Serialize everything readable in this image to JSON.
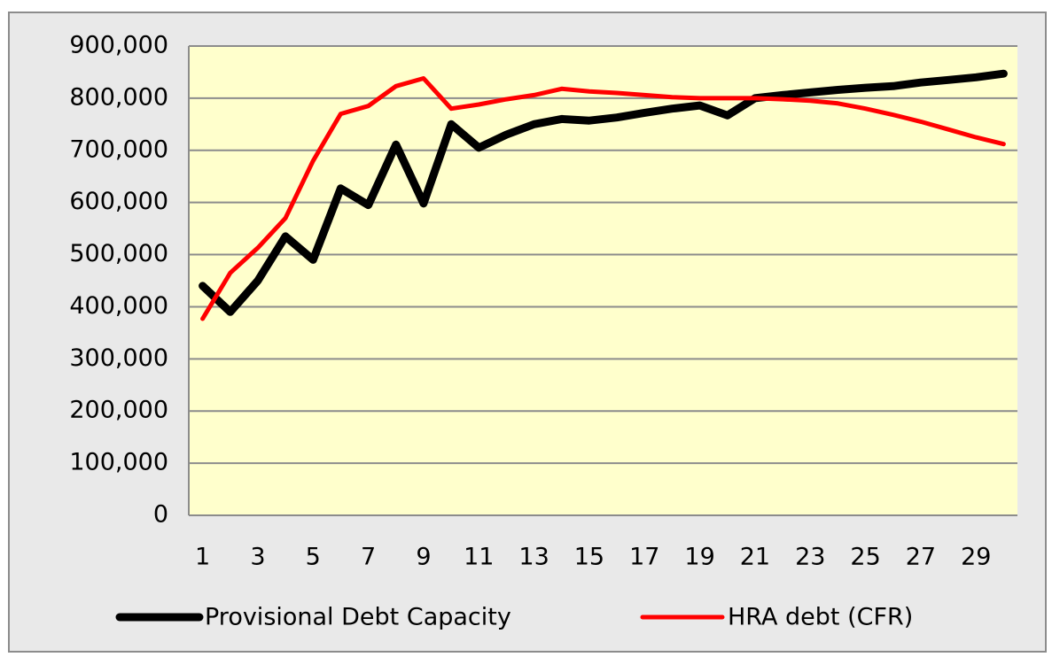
{
  "chart_data": {
    "type": "line",
    "categories": [
      1,
      null,
      3,
      null,
      5,
      null,
      7,
      null,
      9,
      null,
      11,
      null,
      13,
      null,
      15,
      null,
      17,
      null,
      19,
      null,
      21,
      null,
      23,
      null,
      25,
      null,
      27,
      null,
      29,
      null
    ],
    "series": [
      {
        "name": "Provisional Debt Capacity",
        "color": "#000000",
        "values": [
          440000,
          390000,
          450000,
          535000,
          490000,
          627000,
          595000,
          711000,
          598000,
          750000,
          705000,
          730000,
          750000,
          760000,
          757000,
          763000,
          772000,
          780000,
          786000,
          767000,
          800000,
          806000,
          811000,
          816000,
          820000,
          823000,
          830000,
          835000,
          840000,
          847000
        ]
      },
      {
        "name": "HRA debt (CFR)",
        "color": "#ff0000",
        "values": [
          377000,
          465000,
          513000,
          570000,
          680000,
          770000,
          785000,
          823000,
          838000,
          780000,
          788000,
          798000,
          806000,
          818000,
          813000,
          810000,
          806000,
          802000,
          800000,
          800000,
          800000,
          798000,
          795000,
          790000,
          780000,
          768000,
          755000,
          740000,
          725000,
          712000
        ]
      }
    ],
    "ylim": [
      0,
      900000
    ],
    "yticks": [
      0,
      {
        "value": 100000,
        "label": "100,000"
      },
      {
        "value": 200000,
        "label": "200,000"
      },
      {
        "value": 300000,
        "label": "300,000"
      },
      {
        "value": 400000,
        "label": "400,000"
      },
      {
        "value": 500000,
        "label": "500,000"
      },
      {
        "value": 600000,
        "label": "600,000"
      },
      {
        "value": 700000,
        "label": "700,000"
      },
      {
        "value": 800000,
        "label": "800,000"
      },
      {
        "value": 900000,
        "label": "900,000"
      }
    ],
    "grid": true,
    "legend": "bottom"
  }
}
